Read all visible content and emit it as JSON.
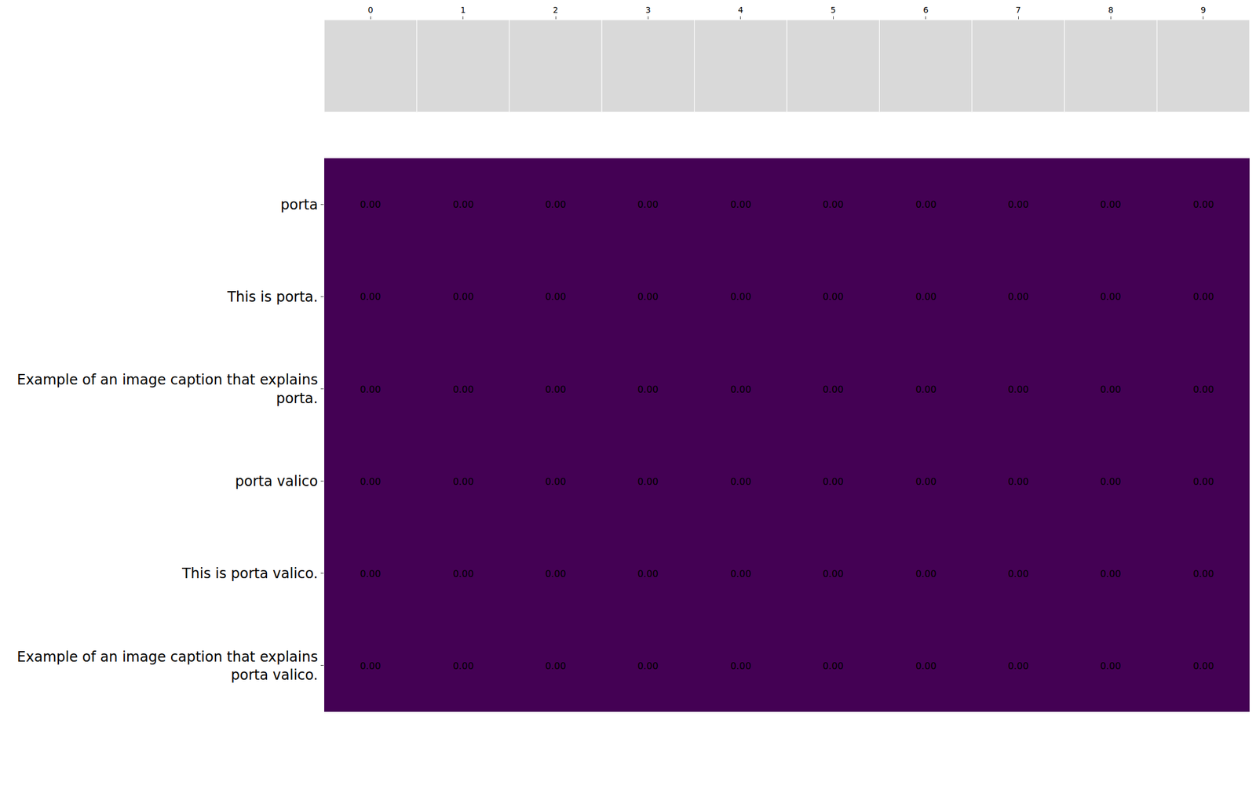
{
  "chart_data": {
    "type": "heatmap",
    "x": [
      0,
      1,
      2,
      3,
      4,
      5,
      6,
      7,
      8,
      9
    ],
    "y": [
      "porta",
      "This is porta.",
      "Example of an image caption that explains porta.",
      "porta valico",
      "This is porta valico.",
      "Example of an image caption that explains porta valico."
    ],
    "z": [
      [
        0,
        0,
        0,
        0,
        0,
        0,
        0,
        0,
        0,
        0
      ],
      [
        0,
        0,
        0,
        0,
        0,
        0,
        0,
        0,
        0,
        0
      ],
      [
        0,
        0,
        0,
        0,
        0,
        0,
        0,
        0,
        0,
        0
      ],
      [
        0,
        0,
        0,
        0,
        0,
        0,
        0,
        0,
        0,
        0
      ],
      [
        0,
        0,
        0,
        0,
        0,
        0,
        0,
        0,
        0,
        0
      ],
      [
        0,
        0,
        0,
        0,
        0,
        0,
        0,
        0,
        0,
        0
      ]
    ],
    "value_labels": [
      [
        "0.00",
        "0.00",
        "0.00",
        "0.00",
        "0.00",
        "0.00",
        "0.00",
        "0.00",
        "0.00",
        "0.00"
      ],
      [
        "0.00",
        "0.00",
        "0.00",
        "0.00",
        "0.00",
        "0.00",
        "0.00",
        "0.00",
        "0.00",
        "0.00"
      ],
      [
        "0.00",
        "0.00",
        "0.00",
        "0.00",
        "0.00",
        "0.00",
        "0.00",
        "0.00",
        "0.00",
        "0.00"
      ],
      [
        "0.00",
        "0.00",
        "0.00",
        "0.00",
        "0.00",
        "0.00",
        "0.00",
        "0.00",
        "0.00",
        "0.00"
      ],
      [
        "0.00",
        "0.00",
        "0.00",
        "0.00",
        "0.00",
        "0.00",
        "0.00",
        "0.00",
        "0.00",
        "0.00"
      ],
      [
        "0.00",
        "0.00",
        "0.00",
        "0.00",
        "0.00",
        "0.00",
        "0.00",
        "0.00",
        "0.00",
        "0.00"
      ]
    ],
    "color": "#440154",
    "data_labels": true,
    "grid": false
  }
}
